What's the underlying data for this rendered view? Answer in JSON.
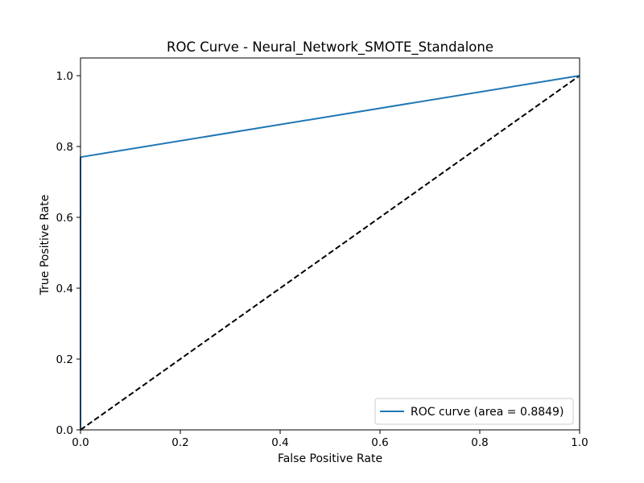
{
  "chart_data": {
    "type": "line",
    "title": "ROC Curve - Neural_Network_SMOTE_Standalone",
    "xlabel": "False Positive Rate",
    "ylabel": "True Positive Rate",
    "xlim": [
      0.0,
      1.0
    ],
    "ylim": [
      0.0,
      1.05
    ],
    "x_ticks": [
      0.0,
      0.2,
      0.4,
      0.6,
      0.8,
      1.0
    ],
    "x_tick_labels": [
      "0.0",
      "0.2",
      "0.4",
      "0.6",
      "0.8",
      "1.0"
    ],
    "y_ticks": [
      0.0,
      0.2,
      0.4,
      0.6,
      0.8,
      1.0
    ],
    "y_tick_labels": [
      "0.0",
      "0.2",
      "0.4",
      "0.6",
      "0.8",
      "1.0"
    ],
    "grid": false,
    "legend_position": "lower-right",
    "series": [
      {
        "name": "ROC curve (area = 0.8849)",
        "color": "#1f77b4",
        "style": "solid",
        "x": [
          0.0,
          0.0,
          1.0
        ],
        "y": [
          0.0,
          0.77,
          1.0
        ]
      },
      {
        "color": "#000000",
        "style": "dashed",
        "x": [
          0.0,
          1.0
        ],
        "y": [
          0.0,
          1.0
        ]
      }
    ]
  }
}
